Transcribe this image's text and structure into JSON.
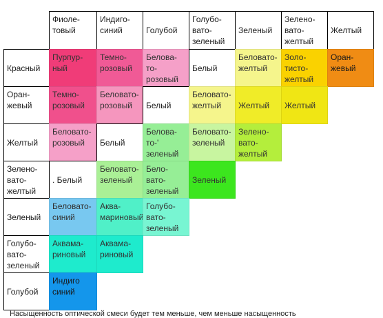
{
  "columns": [
    "Фиоле-\nтовый",
    "Индиго-\nсиний",
    "Голубой",
    "Голубо-\nвато-\nзеленый",
    "Зеленый",
    "Зелено-\nвато-\nжелтый",
    "Желтый"
  ],
  "rows": [
    "Красный",
    "Оран-\nжевый",
    "Желтый",
    "Зелено-\nвато-\nжелтый",
    "Зеленый",
    "Голубо-\nвато-\nзеленый",
    "Голубой"
  ],
  "cells": [
    [
      {
        "text": "Пурпур-\nный",
        "color": "#f03c78"
      },
      {
        "text": "Темно-\nрозовый",
        "color": "#f05a96"
      },
      {
        "text": "Белова-\nто-\nрозовый",
        "color": "#f5a0c8"
      },
      {
        "text": "Белый",
        "color": "#ffffff"
      },
      {
        "text": "Беловато-\nжелтый",
        "color": "#f5f58c"
      },
      {
        "text": "Золо-\nтисто-\nжелтый",
        "color": "#fad200"
      },
      {
        "text": "Оран-\nжевый",
        "color": "#f08c14"
      }
    ],
    [
      {
        "text": "Темно-\nрозовый",
        "color": "#f0508c"
      },
      {
        "text": "Беловато-\nрозовый",
        "color": "#f596be"
      },
      {
        "text": "Белый",
        "color": "#ffffff"
      },
      {
        "text": "Беловато-\nжелтый",
        "color": "#f5f58c"
      },
      {
        "text": "Желтый",
        "color": "#f0ec28"
      },
      {
        "text": "Желтый",
        "color": "#f0e614"
      }
    ],
    [
      {
        "text": "Беловато-\nрозовый",
        "color": "#f5a0c8"
      },
      {
        "text": "Белый",
        "color": "#ffffff"
      },
      {
        "text": "Белова-\nто-'\nзеленый",
        "color": "#96ee96"
      },
      {
        "text": "Беловато-\nзеленый",
        "color": "#c8f5a0"
      },
      {
        "text": "Зелено-\nвато-\nжелтый",
        "color": "#b4ee3c"
      }
    ],
    [
      {
        "text": ". Белый",
        "color": "#ffffff"
      },
      {
        "text": "Беловато-\nзеленый",
        "color": "#aaf096"
      },
      {
        "text": "Бело-\nвато-\nзеленый",
        "color": "#96ee96"
      },
      {
        "text": "Зеленый",
        "color": "#3ce61e"
      }
    ],
    [
      {
        "text": "Беловато-\nсиний",
        "color": "#78c8f0"
      },
      {
        "text": "Аква-\nмариновый",
        "color": "#50f0c8"
      },
      {
        "text": "Голубо-\nвато-\nзеленый",
        "color": "#78f5d2"
      }
    ],
    [
      {
        "text": "Аквама-\nриновый",
        "color": "#1eebcd"
      },
      {
        "text": "Аквама-\nриновый",
        "color": "#1eebcd"
      }
    ],
    [
      {
        "text": "Индиго\nсиний",
        "color": "#1496eb"
      }
    ]
  ],
  "footer_text": "Насыщенность оптической смеси будет тем меньше, чем меньше насыщенность"
}
